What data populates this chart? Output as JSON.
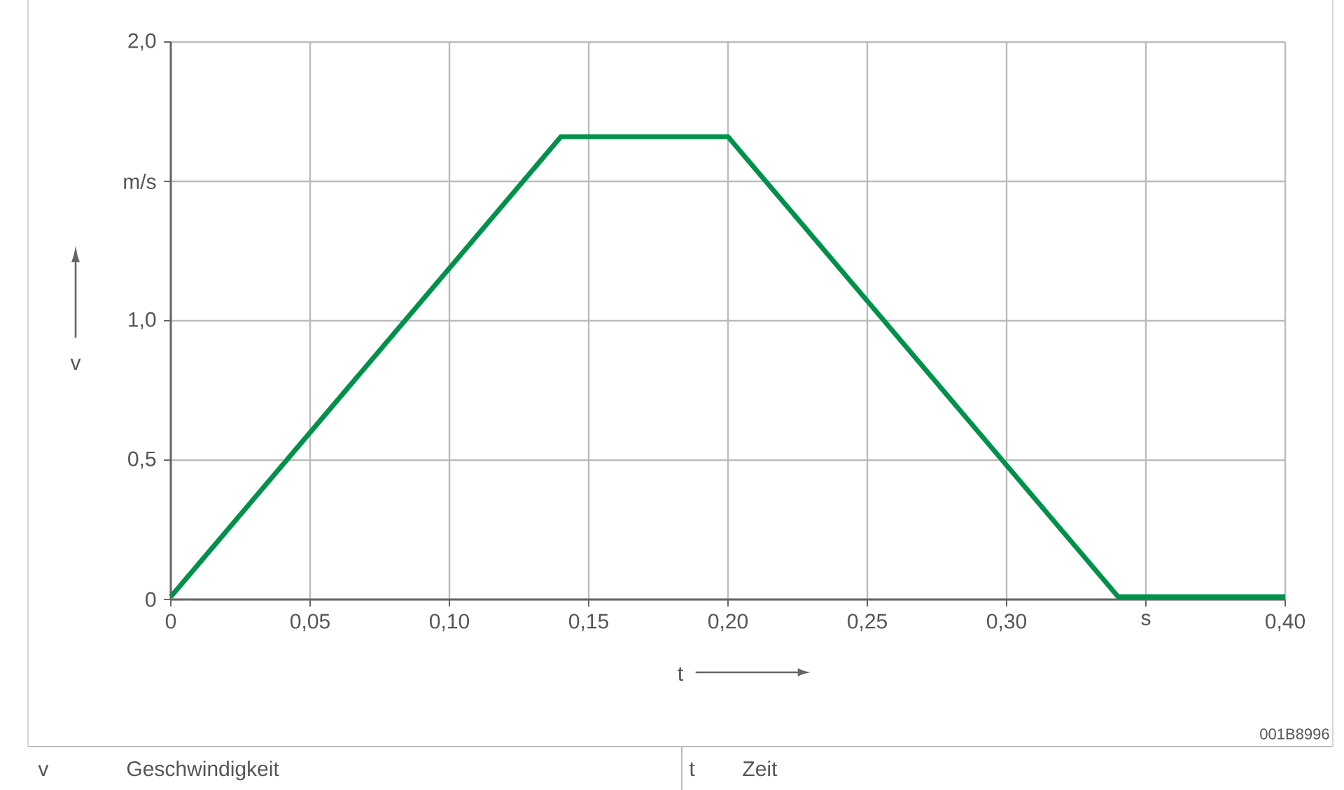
{
  "chart_data": {
    "type": "line",
    "x": [
      0,
      0.14,
      0.2,
      0.34,
      0.4
    ],
    "series": [
      {
        "color": "#00914a",
        "values": [
          0.01,
          1.66,
          1.66,
          0.01,
          0.01
        ]
      }
    ],
    "xlim": [
      0,
      0.4
    ],
    "ylim": [
      0,
      2.0
    ],
    "xticks": [
      0,
      {
        "value": 0.05,
        "label": "0,05"
      },
      {
        "value": 0.1,
        "label": "0,10"
      },
      {
        "value": 0.15,
        "label": "0,15"
      },
      {
        "value": 0.2,
        "label": "0,20"
      },
      {
        "value": 0.25,
        "label": "0,25"
      },
      {
        "value": 0.3,
        "label": "0,30"
      },
      {
        "value": 0.35,
        "label": "s"
      },
      {
        "value": 0.4,
        "label": "0,40"
      }
    ],
    "yticks": [
      0,
      {
        "value": 0.5,
        "label": "0,5"
      },
      {
        "value": 1.0,
        "label": "1,0"
      },
      {
        "value": 1.5,
        "label": "m/s"
      },
      {
        "value": 2.0,
        "label": "2,0"
      }
    ],
    "xlabel": "t",
    "ylabel": "v",
    "grid": true,
    "annotations": [
      "001B8996",
      "v",
      "Geschwindigkeit",
      "t",
      "Zeit"
    ]
  }
}
